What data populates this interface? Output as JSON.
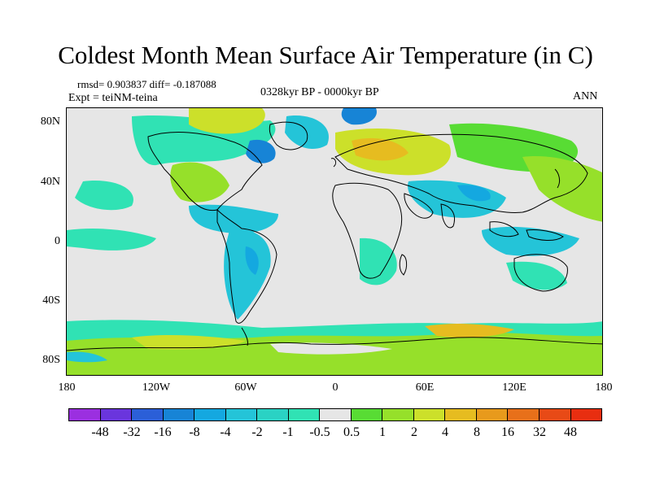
{
  "map": {
    "title": "Coldest Month Mean Surface Air Temperature (in C)",
    "stats": "rmsd= 0.903837 diff= -0.187088",
    "experiment": "Expt = teiNM-teina",
    "period": "0328kyr BP - 0000kyr BP",
    "season": "ANN",
    "lat_labels": [
      "80N",
      "40N",
      "0",
      "40S",
      "80S"
    ],
    "lon_labels": [
      "180",
      "120W",
      "60W",
      "0",
      "60E",
      "120E",
      "180"
    ],
    "colorbar": {
      "levels": [
        "-48",
        "-32",
        "-16",
        "-8",
        "-4",
        "-2",
        "-1",
        "-0.5",
        "0.5",
        "1",
        "2",
        "4",
        "8",
        "16",
        "32",
        "48"
      ],
      "colors": [
        "#9b2fe0",
        "#6a35dd",
        "#2b5fd8",
        "#1784d6",
        "#14a8e0",
        "#24c4d8",
        "#2ad2c4",
        "#30e2b4",
        "#e6e6e6",
        "#58dc34",
        "#96e02a",
        "#cce02a",
        "#e6bc20",
        "#e89a1c",
        "#e8701a",
        "#e84a16",
        "#e82e10"
      ]
    },
    "colors": {
      "background": "#e6e6e6",
      "cool_light": "#30e2b4",
      "cool_mid": "#24c4d8",
      "cool_deep": "#14a8e0",
      "warm_light": "#58dc34",
      "warm_mid": "#96e02a",
      "warm_deep": "#cce02a",
      "hot": "#e6bc20"
    }
  }
}
